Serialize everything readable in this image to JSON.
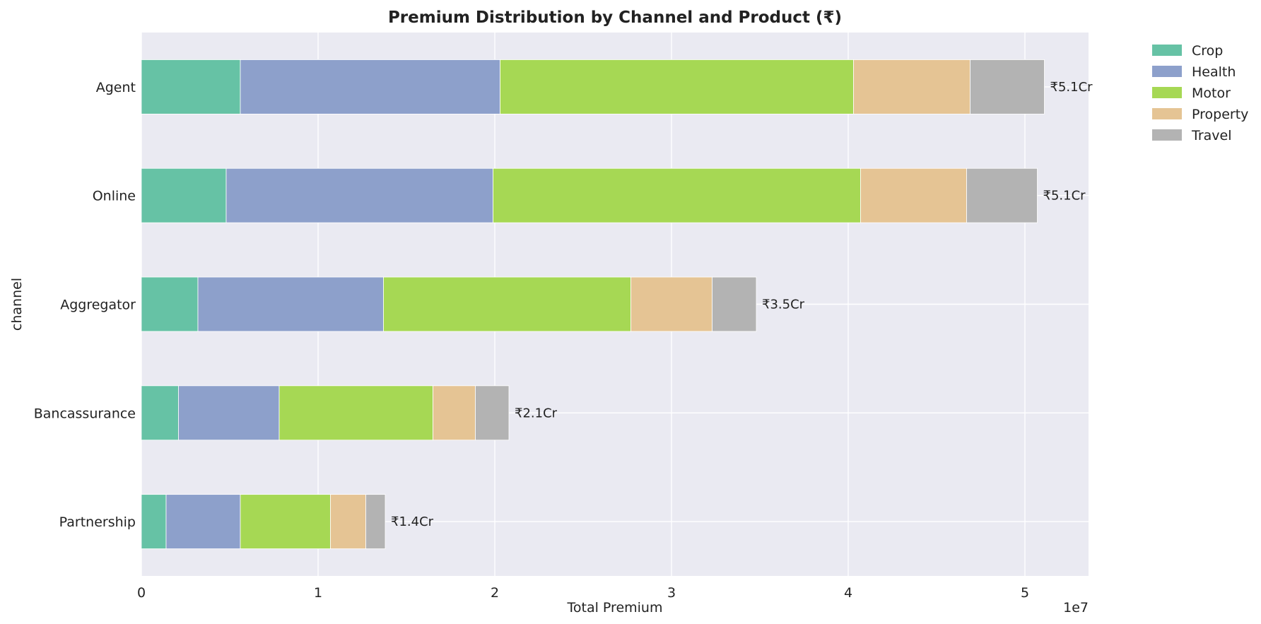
{
  "chart_data": {
    "type": "bar",
    "orientation": "horizontal",
    "stacked": true,
    "title": "Premium Distribution by Channel and Product (₹)",
    "xlabel": "Total Premium",
    "ylabel": "channel",
    "x_offset_label": "1e7",
    "xlim": [
      0,
      53.6
    ],
    "x_ticks": [
      0,
      1,
      2,
      3,
      4,
      5
    ],
    "x_tick_labels": [
      "0",
      "1",
      "2",
      "3",
      "4",
      "5"
    ],
    "categories": [
      "Agent",
      "Online",
      "Aggregator",
      "Bancassurance",
      "Partnership"
    ],
    "series": [
      {
        "name": "Crop",
        "color": "#66c2a5",
        "values": [
          5.6,
          4.8,
          3.2,
          2.1,
          1.4
        ]
      },
      {
        "name": "Health",
        "color": "#8da0cb",
        "values": [
          14.7,
          15.1,
          10.5,
          5.7,
          4.2
        ]
      },
      {
        "name": "Motor",
        "color": "#a6d854",
        "values": [
          20.0,
          20.8,
          14.0,
          8.7,
          5.1
        ]
      },
      {
        "name": "Property",
        "color": "#e5c494",
        "values": [
          6.6,
          6.0,
          4.6,
          2.4,
          2.0
        ]
      },
      {
        "name": "Travel",
        "color": "#b3b3b3",
        "values": [
          4.2,
          4.0,
          2.5,
          1.9,
          1.1
        ]
      }
    ],
    "total_labels": [
      "₹5.1Cr",
      "₹5.1Cr",
      "₹3.5Cr",
      "₹2.1Cr",
      "₹1.4Cr"
    ],
    "grid": true,
    "legend_position": "outside-top-right",
    "plot_background": "#eaeaf2"
  }
}
